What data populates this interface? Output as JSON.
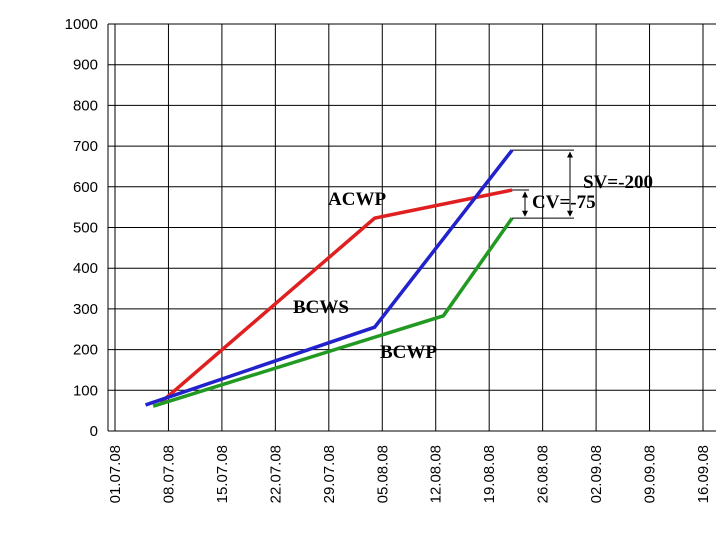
{
  "chart_data": {
    "type": "line",
    "xlim": [
      "01.07.08",
      "16.09.08"
    ],
    "xticks": [
      "01.07.08",
      "08.07.08",
      "15.07.08",
      "22.07.08",
      "29.07.08",
      "05.08.08",
      "12.08.08",
      "19.08.08",
      "26.08.08",
      "02.09.08",
      "09.09.08",
      "16.09.08"
    ],
    "ylim": [
      0,
      1000
    ],
    "yticks": [
      0,
      100,
      200,
      300,
      400,
      500,
      600,
      700,
      800,
      900,
      1000
    ],
    "grid": true,
    "series": [
      {
        "name": "ACWP",
        "color": "#e02020",
        "x": [
          "07.07.08",
          "04.08.08",
          "22.08.08"
        ],
        "values": [
          70,
          523,
          592
        ]
      },
      {
        "name": "BCWS",
        "color": "#2222cc",
        "x": [
          "05.07.08",
          "04.08.08",
          "22.08.08"
        ],
        "values": [
          64,
          255,
          690
        ]
      },
      {
        "name": "BCWP",
        "color": "#229922",
        "x": [
          "06.07.08",
          "13.08.08",
          "22.08.08"
        ],
        "values": [
          61,
          283,
          523
        ]
      }
    ],
    "annotations": [
      {
        "text": "SV=-200",
        "color": "#2222cc"
      },
      {
        "text": "CV=-75",
        "color": "#e02020"
      }
    ]
  }
}
